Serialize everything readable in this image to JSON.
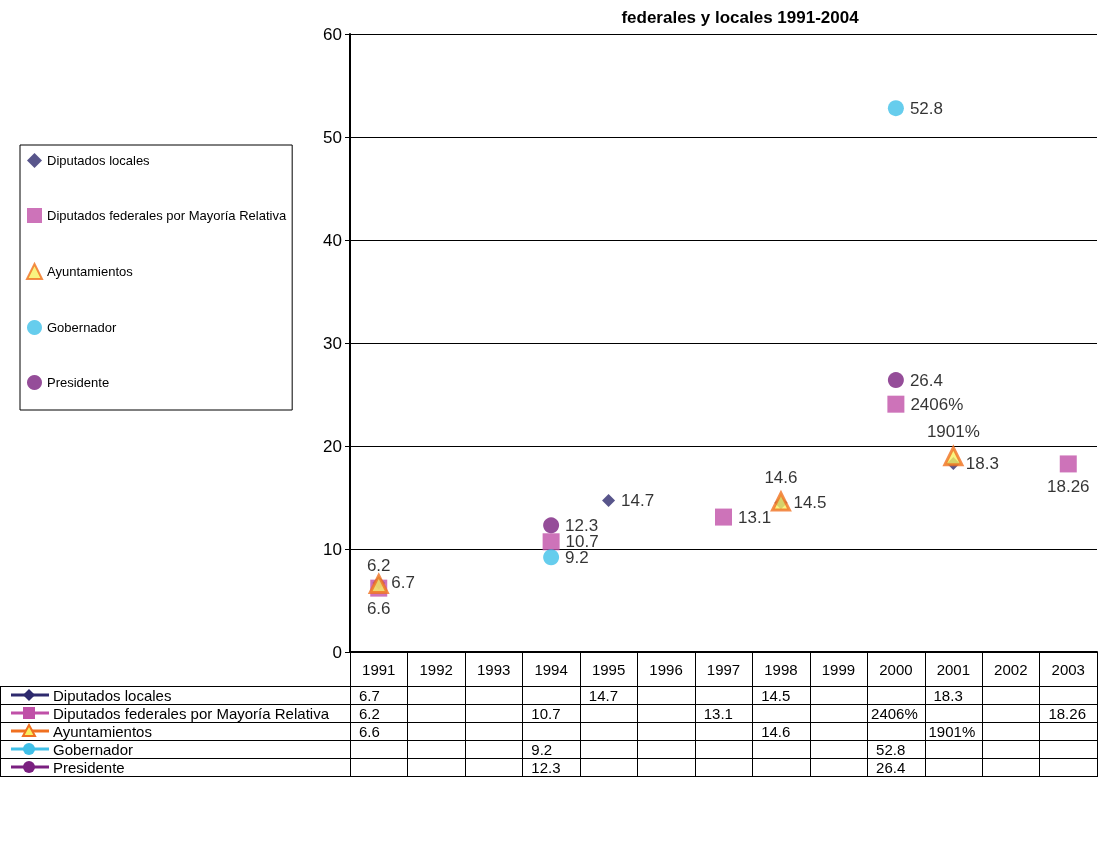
{
  "chart_data": {
    "type": "scatter",
    "title": "federales y locales 1991-2004",
    "categories": [
      "1991",
      "1992",
      "1993",
      "1994",
      "1995",
      "1996",
      "1997",
      "1998",
      "1999",
      "2000",
      "2001",
      "2002",
      "2003"
    ],
    "ylim": [
      0,
      60
    ],
    "yticks": [
      0,
      10,
      20,
      30,
      40,
      50,
      60
    ],
    "grid": "y",
    "legend": "left",
    "series": [
      {
        "name": "Diputados locales",
        "color": "#2e2a6e",
        "marker": "diamond",
        "values": [
          6.7,
          null,
          null,
          null,
          14.7,
          null,
          null,
          14.5,
          null,
          null,
          18.3,
          null,
          null
        ],
        "value_labels": [
          "6.7",
          null,
          null,
          null,
          "14.7",
          null,
          null,
          "14.5",
          null,
          null,
          "18.3",
          null,
          null
        ]
      },
      {
        "name": "Diputados federales por Mayoría Relativa",
        "color": "#c050a8",
        "marker": "square",
        "values": [
          6.2,
          null,
          null,
          10.7,
          null,
          null,
          13.1,
          null,
          null,
          24.06,
          null,
          null,
          18.26
        ],
        "value_labels": [
          "6.2",
          null,
          null,
          "10.7",
          null,
          null,
          "13.1",
          null,
          null,
          "2406%",
          null,
          null,
          "18.26"
        ]
      },
      {
        "name": "Ayuntamientos",
        "color": "#f07020",
        "marker": "triangle",
        "values": [
          6.6,
          null,
          null,
          null,
          null,
          null,
          null,
          14.6,
          null,
          null,
          19.01,
          null,
          null
        ],
        "value_labels": [
          "6.6",
          null,
          null,
          null,
          null,
          null,
          null,
          "14.6",
          null,
          null,
          "1901%",
          null,
          null
        ]
      },
      {
        "name": "Gobernador",
        "color": "#40c0e8",
        "marker": "circle",
        "values": [
          null,
          null,
          null,
          9.2,
          null,
          null,
          null,
          null,
          null,
          52.8,
          null,
          null,
          null
        ],
        "value_labels": [
          null,
          null,
          null,
          "9.2",
          null,
          null,
          null,
          null,
          null,
          "52.8",
          null,
          null,
          null
        ]
      },
      {
        "name": "Presidente",
        "color": "#7a2080",
        "marker": "circle",
        "values": [
          null,
          null,
          null,
          12.3,
          null,
          null,
          null,
          null,
          null,
          26.4,
          null,
          null,
          null
        ],
        "value_labels": [
          null,
          null,
          null,
          "12.3",
          null,
          null,
          null,
          null,
          null,
          "26.4",
          null,
          null,
          null
        ]
      }
    ]
  }
}
